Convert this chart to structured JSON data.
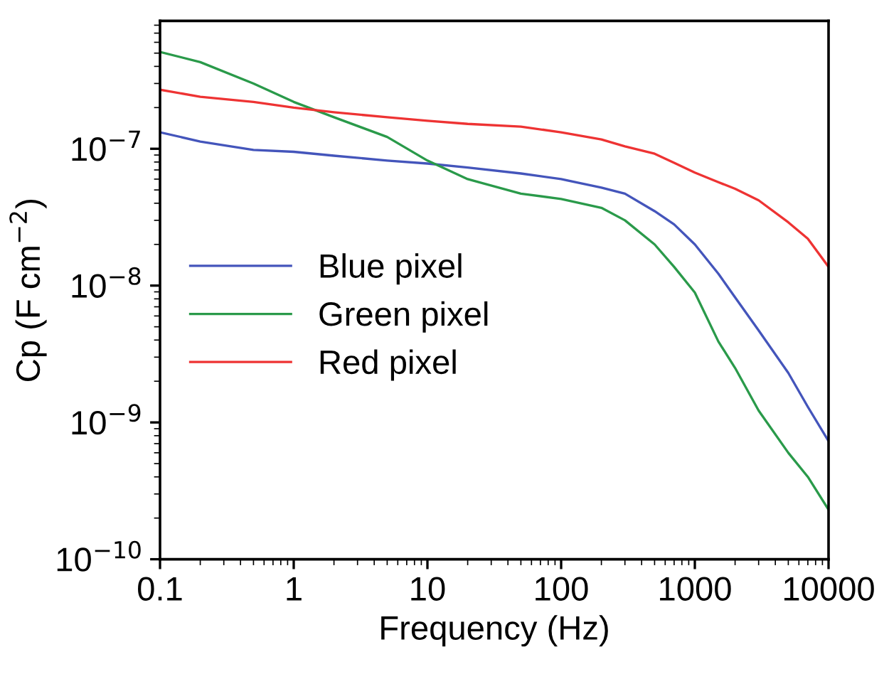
{
  "chart_data": {
    "type": "line",
    "xlabel": "Frequency (Hz)",
    "ylabel": "Cp (F cm$^{−2}$)",
    "log": "xy",
    "grid": false,
    "legend": "left",
    "x": [
      0.1,
      0.2,
      0.5,
      1,
      2,
      5,
      10,
      20,
      50,
      100,
      200,
      300,
      500,
      700,
      1000,
      1500,
      2000,
      3000,
      5000,
      7000,
      10000
    ],
    "xlim": [
      0.1,
      10000
    ],
    "xticks": [
      0.1,
      1,
      10,
      100,
      1000,
      10000
    ],
    "ylim": [
      1e-10,
      8.6e-07
    ],
    "yticks": [
      {
        "value": 1e-10,
        "label": "10$^{−10}$"
      },
      {
        "value": 1e-09,
        "label": "10$^{−9}$"
      },
      {
        "value": 1e-08,
        "label": "10$^{−8}$"
      },
      {
        "value": 1e-07,
        "label": "10$^{−7}$"
      }
    ],
    "series": [
      {
        "name": "Blue pixel",
        "color": "#4455bb",
        "values": [
          1.32e-07,
          1.13e-07,
          9.8e-08,
          9.5e-08,
          8.9e-08,
          8.2e-08,
          7.8e-08,
          7.3e-08,
          6.6e-08,
          6e-08,
          5.2e-08,
          4.7e-08,
          3.5e-08,
          2.8e-08,
          2e-08,
          1.22e-08,
          8.2e-09,
          4.7e-09,
          2.3e-09,
          1.3e-09,
          7.3e-10
        ]
      },
      {
        "name": "Green pixel",
        "color": "#2a9a4a",
        "values": [
          5.1e-07,
          4.3e-07,
          3e-07,
          2.2e-07,
          1.7e-07,
          1.22e-07,
          8.2e-08,
          6e-08,
          4.7e-08,
          4.3e-08,
          3.7e-08,
          3e-08,
          2e-08,
          1.37e-08,
          8.9e-09,
          3.9e-09,
          2.5e-09,
          1.22e-09,
          6e-10,
          4e-10,
          2.3e-10
        ]
      },
      {
        "name": "Red pixel",
        "color": "#ee3333",
        "values": [
          2.7e-07,
          2.4e-07,
          2.2e-07,
          2e-07,
          1.85e-07,
          1.7e-07,
          1.6e-07,
          1.52e-07,
          1.45e-07,
          1.32e-07,
          1.17e-07,
          1.04e-07,
          9.2e-08,
          7.9e-08,
          6.7e-08,
          5.7e-08,
          5.1e-08,
          4.2e-08,
          2.9e-08,
          2.2e-08,
          1.37e-08
        ]
      }
    ]
  }
}
